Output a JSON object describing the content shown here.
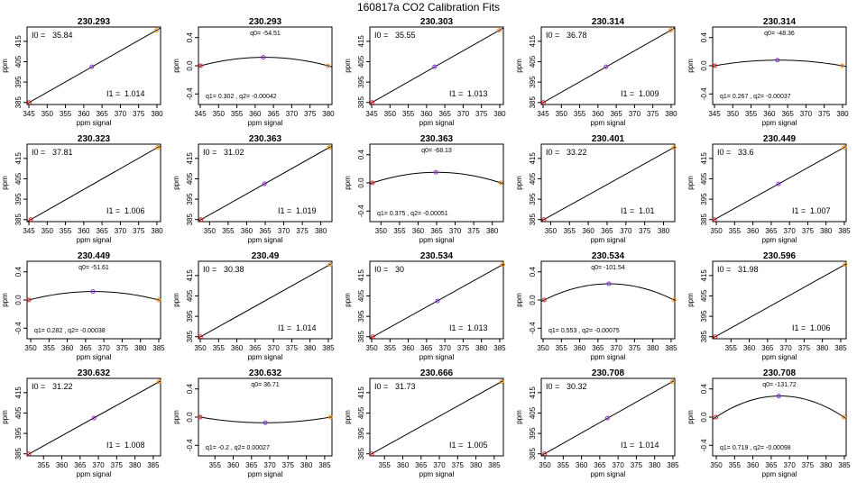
{
  "title": "160817a   CO2 Calibration Fits",
  "colors": {
    "low_point": "#dd2222",
    "mid_point": "#8a2be2",
    "high_point": "#ff8c00",
    "line": "#000000"
  },
  "chart_data": [
    {
      "type": "line",
      "variant": "linear",
      "title": "230.293",
      "xlabel": "ppm signal",
      "ylabel": "ppm",
      "xlim": [
        344.5,
        381
      ],
      "ylim": [
        384,
        422
      ],
      "xticks": [
        345,
        350,
        355,
        360,
        365,
        370,
        375,
        380
      ],
      "yticks": [
        385,
        395,
        405,
        415
      ],
      "points": {
        "x": [
          345.1,
          362.2,
          379.9
        ],
        "y": [
          385,
          402.5,
          420.4
        ]
      },
      "annotations": {
        "I0_label": "I0 =",
        "I0_value": "35.84",
        "I1_label": "I1 =",
        "I1_value": "1.014"
      }
    },
    {
      "type": "line",
      "variant": "residual",
      "title": "230.293",
      "xlabel": "ppm signal",
      "ylabel": "ppm",
      "xlim": [
        344.5,
        381
      ],
      "ylim": [
        -0.55,
        0.55
      ],
      "xticks": [
        345,
        350,
        355,
        360,
        365,
        370,
        375,
        380
      ],
      "yticks": [
        -0.4,
        0.0,
        0.4
      ],
      "points": {
        "x": [
          345.1,
          362.2,
          379.9
        ],
        "y": [
          0,
          0.12,
          0
        ]
      },
      "annotations": {
        "q0": "q0= -54.51",
        "q12": "q1= 0.302 , q2= -0.00042"
      }
    },
    {
      "type": "line",
      "variant": "linear",
      "title": "230.303",
      "xlabel": "ppm signal",
      "ylabel": "ppm",
      "xlim": [
        344.5,
        381
      ],
      "ylim": [
        384,
        422
      ],
      "xticks": [
        345,
        350,
        355,
        360,
        365,
        370,
        375,
        380
      ],
      "yticks": [
        385,
        395,
        405,
        415
      ],
      "points": {
        "x": [
          345.1,
          362.2,
          379.9
        ],
        "y": [
          385,
          402.5,
          420.4
        ]
      },
      "annotations": {
        "I0_label": "I0 =",
        "I0_value": "35.55",
        "I1_label": "I1 =",
        "I1_value": "1.013"
      }
    },
    {
      "type": "line",
      "variant": "linear",
      "title": "230.314",
      "xlabel": "ppm signal",
      "ylabel": "ppm",
      "xlim": [
        344.5,
        381
      ],
      "ylim": [
        384,
        422
      ],
      "xticks": [
        345,
        350,
        355,
        360,
        365,
        370,
        375,
        380
      ],
      "yticks": [
        385,
        395,
        405,
        415
      ],
      "points": {
        "x": [
          345.1,
          362.2,
          379.9
        ],
        "y": [
          385,
          402.5,
          420.4
        ]
      },
      "annotations": {
        "I0_label": "I0 =",
        "I0_value": "36.78",
        "I1_label": "I1 =",
        "I1_value": "1.009"
      }
    },
    {
      "type": "line",
      "variant": "residual",
      "title": "230.314",
      "xlabel": "ppm signal",
      "ylabel": "ppm",
      "xlim": [
        344.5,
        381
      ],
      "ylim": [
        -0.55,
        0.55
      ],
      "xticks": [
        345,
        350,
        355,
        360,
        365,
        370,
        375,
        380
      ],
      "yticks": [
        -0.4,
        0.0,
        0.4
      ],
      "points": {
        "x": [
          345.1,
          362.2,
          379.9
        ],
        "y": [
          0,
          0.08,
          0
        ]
      },
      "annotations": {
        "q0": "q0= -48.36",
        "q12": "q1= 0.267 , q2= -0.00037"
      }
    },
    {
      "type": "line",
      "variant": "linear",
      "title": "230.323",
      "xlabel": "ppm signal",
      "ylabel": "ppm",
      "xlim": [
        344.5,
        381
      ],
      "ylim": [
        384,
        422
      ],
      "xticks": [
        345,
        350,
        355,
        360,
        365,
        370,
        375,
        380
      ],
      "yticks": [
        385,
        395,
        405,
        415
      ],
      "points": {
        "x": [
          345.5,
          380.2
        ],
        "y": [
          385,
          420.4
        ]
      },
      "annotations": {
        "I0_label": "I0 =",
        "I0_value": "37.81",
        "I1_label": "I1 =",
        "I1_value": "1.006"
      }
    },
    {
      "type": "line",
      "variant": "linear",
      "title": "230.363",
      "xlabel": "ppm signal",
      "ylabel": "ppm",
      "xlim": [
        347,
        383
      ],
      "ylim": [
        384,
        422
      ],
      "xticks": [
        350,
        355,
        360,
        365,
        370,
        375,
        380
      ],
      "yticks": [
        385,
        395,
        405,
        415
      ],
      "points": {
        "x": [
          347.7,
          364.8,
          382.3
        ],
        "y": [
          385,
          402.5,
          420.4
        ]
      },
      "annotations": {
        "I0_label": "I0 =",
        "I0_value": "31.02",
        "I1_label": "I1 =",
        "I1_value": "1.019"
      }
    },
    {
      "type": "line",
      "variant": "residual",
      "title": "230.363",
      "xlabel": "ppm signal",
      "ylabel": "ppm",
      "xlim": [
        347,
        383
      ],
      "ylim": [
        -0.55,
        0.55
      ],
      "xticks": [
        350,
        355,
        360,
        365,
        370,
        375,
        380
      ],
      "yticks": [
        -0.4,
        0.0,
        0.4
      ],
      "points": {
        "x": [
          347.7,
          364.8,
          382.3
        ],
        "y": [
          0,
          0.15,
          0
        ]
      },
      "annotations": {
        "q0": "q0= -68.13",
        "q12": "q1= 0.375 , q2= -0.00051"
      }
    },
    {
      "type": "line",
      "variant": "linear",
      "title": "230.401",
      "xlabel": "ppm signal",
      "ylabel": "ppm",
      "xlim": [
        347.5,
        383
      ],
      "ylim": [
        384,
        422
      ],
      "xticks": [
        350,
        355,
        360,
        365,
        370,
        375,
        380
      ],
      "yticks": [
        385,
        395,
        405,
        415
      ],
      "points": {
        "x": [
          348.2,
          382.8
        ],
        "y": [
          385,
          420.4
        ]
      },
      "annotations": {
        "I0_label": "I0 =",
        "I0_value": "33.22",
        "I1_label": "I1 =",
        "I1_value": "1.01"
      }
    },
    {
      "type": "line",
      "variant": "linear",
      "title": "230.449",
      "xlabel": "ppm signal",
      "ylabel": "ppm",
      "xlim": [
        349,
        385.5
      ],
      "ylim": [
        384,
        422
      ],
      "xticks": [
        350,
        355,
        360,
        365,
        370,
        375,
        380,
        385
      ],
      "yticks": [
        385,
        395,
        405,
        415
      ],
      "points": {
        "x": [
          349.5,
          367.0,
          385
        ],
        "y": [
          385,
          402.5,
          420.4
        ]
      },
      "annotations": {
        "I0_label": "I0 =",
        "I0_value": "33.6",
        "I1_label": "I1 =",
        "I1_value": "1.007"
      }
    },
    {
      "type": "line",
      "variant": "residual",
      "title": "230.449",
      "xlabel": "ppm signal",
      "ylabel": "ppm",
      "xlim": [
        349,
        385.5
      ],
      "ylim": [
        -0.55,
        0.55
      ],
      "xticks": [
        350,
        355,
        360,
        365,
        370,
        375,
        380,
        385
      ],
      "yticks": [
        -0.4,
        0.0,
        0.4
      ],
      "points": {
        "x": [
          349.5,
          367.0,
          385
        ],
        "y": [
          0,
          0.12,
          0
        ]
      },
      "annotations": {
        "q0": "q0= -51.61",
        "q12": "q1= 0.282 , q2= -0.00038"
      }
    },
    {
      "type": "line",
      "variant": "linear",
      "title": "230.49",
      "xlabel": "ppm signal",
      "ylabel": "ppm",
      "xlim": [
        349.5,
        386
      ],
      "ylim": [
        384,
        422
      ],
      "xticks": [
        350,
        355,
        360,
        365,
        370,
        375,
        380,
        385
      ],
      "yticks": [
        385,
        395,
        405,
        415
      ],
      "points": {
        "x": [
          350.1,
          385.5
        ],
        "y": [
          385,
          420.4
        ]
      },
      "annotations": {
        "I0_label": "I0 =",
        "I0_value": "30.38",
        "I1_label": "I1 =",
        "I1_value": "1.014"
      }
    },
    {
      "type": "line",
      "variant": "linear",
      "title": "230.534",
      "xlabel": "ppm signal",
      "ylabel": "ppm",
      "xlim": [
        349.5,
        386
      ],
      "ylim": [
        384,
        422
      ],
      "xticks": [
        350,
        355,
        360,
        365,
        370,
        375,
        380,
        385
      ],
      "yticks": [
        385,
        395,
        405,
        415
      ],
      "points": {
        "x": [
          350.3,
          368.0,
          385.8
        ],
        "y": [
          385,
          402.5,
          420.4
        ]
      },
      "annotations": {
        "I0_label": "I0 =",
        "I0_value": "30",
        "I1_label": "I1 =",
        "I1_value": "1.013"
      }
    },
    {
      "type": "line",
      "variant": "residual",
      "title": "230.534",
      "xlabel": "ppm signal",
      "ylabel": "ppm",
      "xlim": [
        349.5,
        386
      ],
      "ylim": [
        -0.55,
        0.55
      ],
      "xticks": [
        350,
        355,
        360,
        365,
        370,
        375,
        380,
        385
      ],
      "yticks": [
        -0.4,
        0.0,
        0.4
      ],
      "points": {
        "x": [
          350.3,
          368.0,
          385.8
        ],
        "y": [
          0,
          0.23,
          0
        ]
      },
      "annotations": {
        "q0": "q0= -101.54",
        "q12": "q1= 0.553 , q2= -0.00075"
      }
    },
    {
      "type": "line",
      "variant": "linear",
      "title": "230.596",
      "xlabel": "ppm signal",
      "ylabel": "ppm",
      "xlim": [
        350,
        386.5
      ],
      "ylim": [
        384,
        422
      ],
      "xticks": [
        355,
        360,
        365,
        370,
        375,
        380,
        385
      ],
      "yticks": [
        385,
        395,
        405,
        415
      ],
      "points": {
        "x": [
          350.7,
          386.2
        ],
        "y": [
          385,
          420.4
        ]
      },
      "annotations": {
        "I0_label": "I0 =",
        "I0_value": "31.98",
        "I1_label": "I1 =",
        "I1_value": "1.006"
      }
    },
    {
      "type": "line",
      "variant": "linear",
      "title": "230.632",
      "xlabel": "ppm signal",
      "ylabel": "ppm",
      "xlim": [
        350.5,
        387
      ],
      "ylim": [
        384,
        422
      ],
      "xticks": [
        355,
        360,
        365,
        370,
        375,
        380,
        385
      ],
      "yticks": [
        385,
        395,
        405,
        415
      ],
      "points": {
        "x": [
          351.0,
          368.8,
          386.6
        ],
        "y": [
          385,
          402.5,
          420.4
        ]
      },
      "annotations": {
        "I0_label": "I0 =",
        "I0_value": "31.22",
        "I1_label": "I1 =",
        "I1_value": "1.008"
      }
    },
    {
      "type": "line",
      "variant": "residual",
      "title": "230.632",
      "xlabel": "ppm signal",
      "ylabel": "ppm",
      "xlim": [
        350.5,
        387
      ],
      "ylim": [
        -0.55,
        0.55
      ],
      "xticks": [
        355,
        360,
        365,
        370,
        375,
        380,
        385
      ],
      "yticks": [
        -0.4,
        0.0,
        0.4
      ],
      "points": {
        "x": [
          351.0,
          368.8,
          386.6
        ],
        "y": [
          0,
          -0.08,
          0
        ]
      },
      "annotations": {
        "q0": "q0= 36.71",
        "q12": "q1= -0.2 , q2= 0.00027"
      }
    },
    {
      "type": "line",
      "variant": "linear",
      "title": "230.666",
      "xlabel": "ppm signal",
      "ylabel": "ppm",
      "xlim": [
        351,
        387.5
      ],
      "ylim": [
        384,
        422
      ],
      "xticks": [
        355,
        360,
        365,
        370,
        375,
        380,
        385
      ],
      "yticks": [
        385,
        395,
        405,
        415
      ],
      "points": {
        "x": [
          351.5,
          387.0
        ],
        "y": [
          385,
          420.4
        ]
      },
      "annotations": {
        "I0_label": "I0 =",
        "I0_value": "31.73",
        "I1_label": "I1 =",
        "I1_value": "1.005"
      }
    },
    {
      "type": "line",
      "variant": "linear",
      "title": "230.708",
      "xlabel": "ppm signal",
      "ylabel": "ppm",
      "xlim": [
        349,
        385.5
      ],
      "ylim": [
        384,
        422
      ],
      "xticks": [
        350,
        355,
        360,
        365,
        370,
        375,
        380,
        385
      ],
      "yticks": [
        385,
        395,
        405,
        415
      ],
      "points": {
        "x": [
          349.9,
          367.1,
          384.9
        ],
        "y": [
          385,
          402.5,
          420.4
        ]
      },
      "annotations": {
        "I0_label": "I0 =",
        "I0_value": "30.32",
        "I1_label": "I1 =",
        "I1_value": "1.014"
      }
    },
    {
      "type": "line",
      "variant": "residual",
      "title": "230.708",
      "xlabel": "ppm signal",
      "ylabel": "ppm",
      "xlim": [
        349,
        385.5
      ],
      "ylim": [
        -0.55,
        0.55
      ],
      "xticks": [
        350,
        355,
        360,
        365,
        370,
        375,
        380,
        385
      ],
      "yticks": [
        -0.4,
        0.0,
        0.4
      ],
      "points": {
        "x": [
          349.9,
          367.1,
          384.9
        ],
        "y": [
          0,
          0.3,
          0
        ]
      },
      "annotations": {
        "q0": "q0= -131.72",
        "q12": "q1= 0.719 , q2= -0.00098"
      }
    }
  ]
}
